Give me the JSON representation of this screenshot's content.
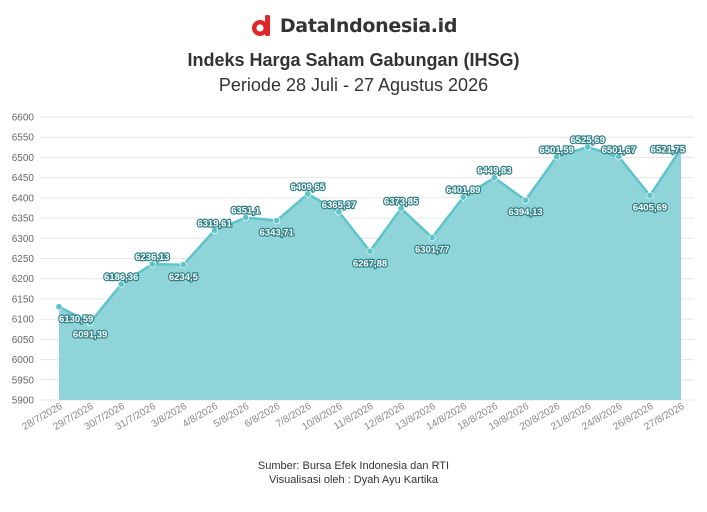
{
  "brand": {
    "name": "DataIndonesia.id",
    "logo_icon": "dataindonesia-logo-icon",
    "logo_color": "#e0262b"
  },
  "chart_data": {
    "type": "area",
    "title": "Indeks Harga Saham Gabungan (IHSG)",
    "subtitle": "Periode 28 Juli - 27 Agustus 2026",
    "xlabel": "",
    "ylabel": "",
    "ylim": [
      5900,
      6600
    ],
    "yticks": [
      5900,
      5950,
      6000,
      6050,
      6100,
      6150,
      6200,
      6250,
      6300,
      6350,
      6400,
      6450,
      6500,
      6550,
      6600
    ],
    "grid": true,
    "line_color": "#5ec4c9",
    "fill_color": "#8fd4d8",
    "categories": [
      "28/7/2026",
      "29/7/2026",
      "30/7/2026",
      "31/7/2026",
      "3/8/2026",
      "4/8/2026",
      "5/8/2026",
      "6/8/2026",
      "7/8/2026",
      "10/8/2026",
      "11/8/2026",
      "12/8/2026",
      "13/8/2026",
      "14/8/2026",
      "18/8/2026",
      "19/8/2026",
      "20/8/2026",
      "21/8/2026",
      "24/8/2026",
      "26/8/2026",
      "27/8/2026"
    ],
    "values": [
      6130.59,
      6091.39,
      6186.36,
      6236.13,
      6234.5,
      6319.61,
      6351.1,
      6343.71,
      6409.65,
      6365.37,
      6267.88,
      6373.85,
      6301.77,
      6401.89,
      6449.83,
      6394.13,
      6501.59,
      6525.69,
      6501.67,
      6405.69,
      6521.75
    ],
    "data_labels": [
      "6130,59",
      "6091,39",
      "6186,36",
      "6236,13",
      "6234,5",
      "6319,61",
      "6351,1",
      "6343,71",
      "6409,65",
      "6365,37",
      "6267,88",
      "6373,85",
      "6301,77",
      "6401,89",
      "6449,83",
      "6394,13",
      "6501,59",
      "6525,69",
      "6501,67",
      "6405,69",
      "6521,75"
    ]
  },
  "footer": {
    "source": "Sumber: Bursa Efek Indonesia dan RTI",
    "credit": "Visualisasi oleh : Dyah Ayu Kartika"
  }
}
